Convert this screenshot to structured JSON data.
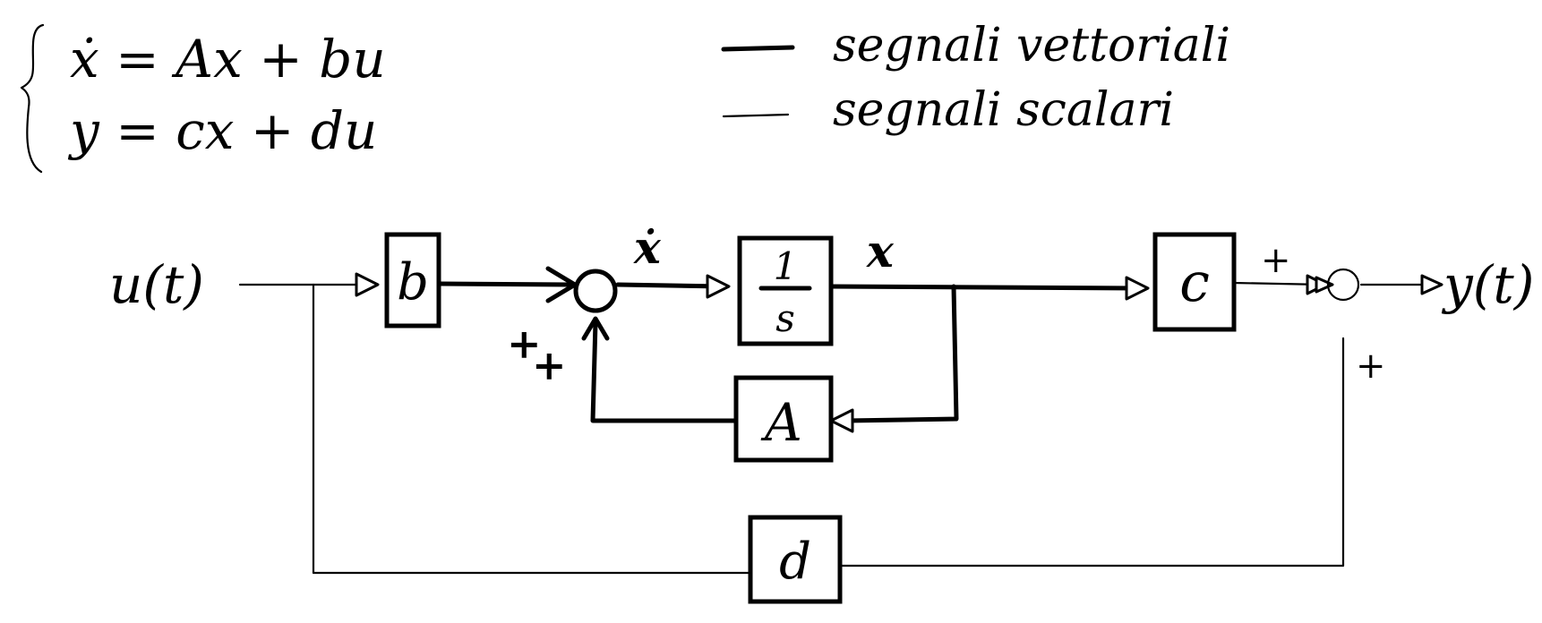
{
  "equations": {
    "state_eq": "ẋ = Ax + bu",
    "output_eq": "y = cx + du"
  },
  "legend": {
    "vector_label": "segnali vettoriali",
    "scalar_label": "segnali scalari"
  },
  "diagram": {
    "input_label": "u(t)",
    "output_label": "y(t)",
    "block_b": "b",
    "block_integrator_num": "1",
    "block_integrator_den": "s",
    "block_A": "A",
    "block_c": "c",
    "block_d": "d",
    "xdot_label": "ẋ",
    "x_label": "x",
    "sum1_sign_top": "+",
    "sum1_sign_bottom": "+",
    "sum2_sign_left": "+",
    "sum2_sign_bottom": "+"
  }
}
